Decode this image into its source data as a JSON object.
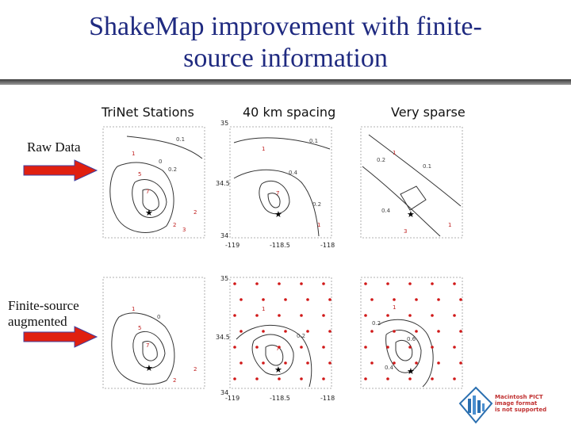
{
  "slide": {
    "title_line1": "ShakeMap improvement with finite-",
    "title_line2": "source information"
  },
  "columns": [
    "TriNet Stations",
    "40 km spacing",
    "Very sparse"
  ],
  "rows": [
    {
      "label_line1": "Raw Data",
      "label_line2": ""
    },
    {
      "label_line1": "Finite-source",
      "label_line2": "augmented"
    }
  ],
  "map": {
    "y_ticks": [
      "35",
      "34.5",
      "34"
    ],
    "x_ticks": [
      "-119",
      "-118.5",
      "-118"
    ]
  },
  "contour_labels": [
    "0.1",
    "0.2",
    "0.4",
    "0.6"
  ],
  "station_values": [
    "1",
    "0",
    "5",
    "7",
    "2",
    "3",
    "4"
  ],
  "colors": {
    "title": "#1f2a80",
    "station": "#d01818",
    "arrow": "#e02010"
  },
  "icons": [
    "epicenter-star-icon",
    "macintosh-pict-icon"
  ],
  "pict_placeholder": {
    "line1": "Macintosh PICT",
    "line2": "image format",
    "line3": "is not supported"
  }
}
